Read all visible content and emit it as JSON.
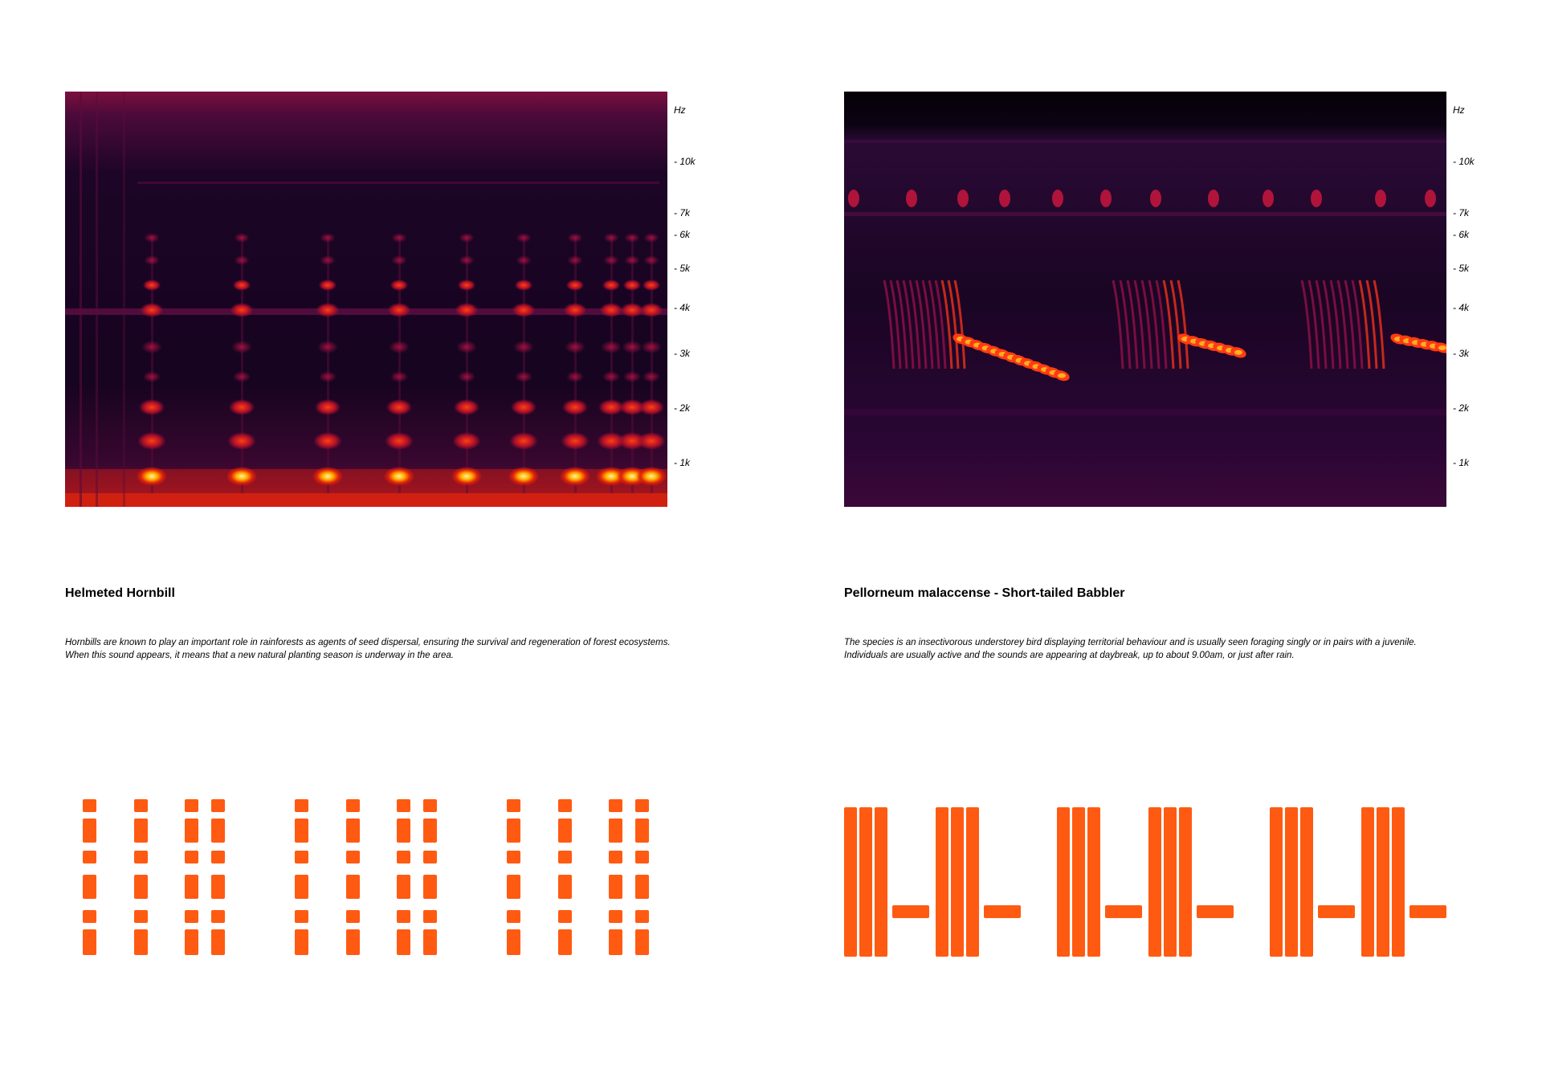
{
  "accent": "#ff5a12",
  "axis_unit": "Hz",
  "axis_ticks": [
    "- 10k",
    "- 7k",
    "- 6k",
    "- 5k",
    "- 4k",
    "- 3k",
    "- 2k",
    "- 1k"
  ],
  "panels": [
    {
      "title": "Helmeted Hornbill",
      "description": "Hornbills are known to play an important role in rainforests as agents of seed dispersal, ensuring the survival and regeneration of forest ecosystems. When this sound appears, it means that a new natural planting season is underway in the area.",
      "spectrogram_image": "helmeted-hornbill-spectrogram"
    },
    {
      "title": "Pellorneum malaccense - Short-tailed Babbler",
      "description": "The species is an insectivorous understorey bird displaying territorial behaviour and is usually seen foraging singly or in pairs with a juvenile. Individuals are usually active and the sounds are appearing  at daybreak, up to about 9.00am, or just after rain.",
      "spectrogram_image": "short-tailed-babbler-spectrogram"
    }
  ]
}
